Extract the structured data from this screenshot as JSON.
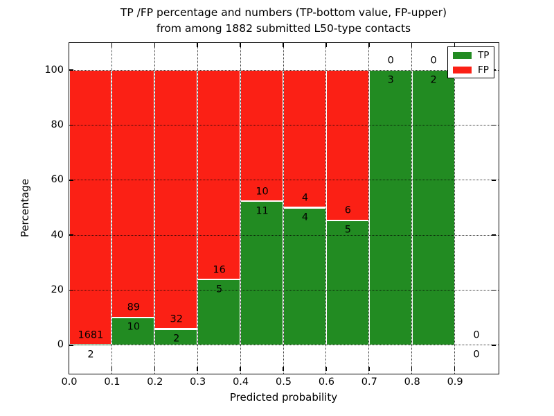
{
  "title": {
    "line1": "TP /FP percentage and numbers (TP-bottom value, FP-upper)",
    "line2": "from among 1882 submitted L50-type contacts"
  },
  "axes": {
    "xlabel": "Predicted probability",
    "ylabel": "Percentage",
    "x_ticks": [
      "0.0",
      "0.1",
      "0.2",
      "0.3",
      "0.4",
      "0.5",
      "0.6",
      "0.7",
      "0.8",
      "0.9"
    ],
    "y_ticks": [
      "0",
      "20",
      "40",
      "60",
      "80",
      "100"
    ]
  },
  "legend": {
    "position": "upper right",
    "items": [
      {
        "label": "TP",
        "color": "#228b22"
      },
      {
        "label": "FP",
        "color": "#fb2015"
      }
    ]
  },
  "colors": {
    "tp": "#228b22",
    "fp": "#fb2015",
    "text": "#000000",
    "background": "#ffffff"
  },
  "chart_data": {
    "type": "bar",
    "variant": "stacked-percentage",
    "title": "TP /FP percentage and numbers (TP-bottom value, FP-upper) from among 1882 submitted L50-type contacts",
    "xlabel": "Predicted probability",
    "ylabel": "Percentage",
    "total_contacts": 1882,
    "bin_width": 0.1,
    "categories": [
      "0.0-0.1",
      "0.1-0.2",
      "0.2-0.3",
      "0.3-0.4",
      "0.4-0.5",
      "0.5-0.6",
      "0.6-0.7",
      "0.7-0.8",
      "0.8-0.9",
      "0.9-1.0"
    ],
    "series": [
      {
        "name": "TP",
        "color": "#228b22",
        "values": [
          2,
          10,
          2,
          5,
          11,
          4,
          5,
          3,
          2,
          0
        ]
      },
      {
        "name": "FP",
        "color": "#fb2015",
        "values": [
          1681,
          89,
          32,
          16,
          10,
          4,
          6,
          0,
          0,
          0
        ]
      }
    ],
    "tp_percent": [
      0.12,
      10.1,
      5.88,
      23.81,
      52.38,
      50.0,
      45.45,
      100.0,
      100.0,
      null
    ],
    "xlim": [
      0.0,
      1.0
    ],
    "ylim": [
      -10,
      110
    ],
    "grid": true,
    "grid_style": "dotted",
    "legend_position": "upper right"
  }
}
